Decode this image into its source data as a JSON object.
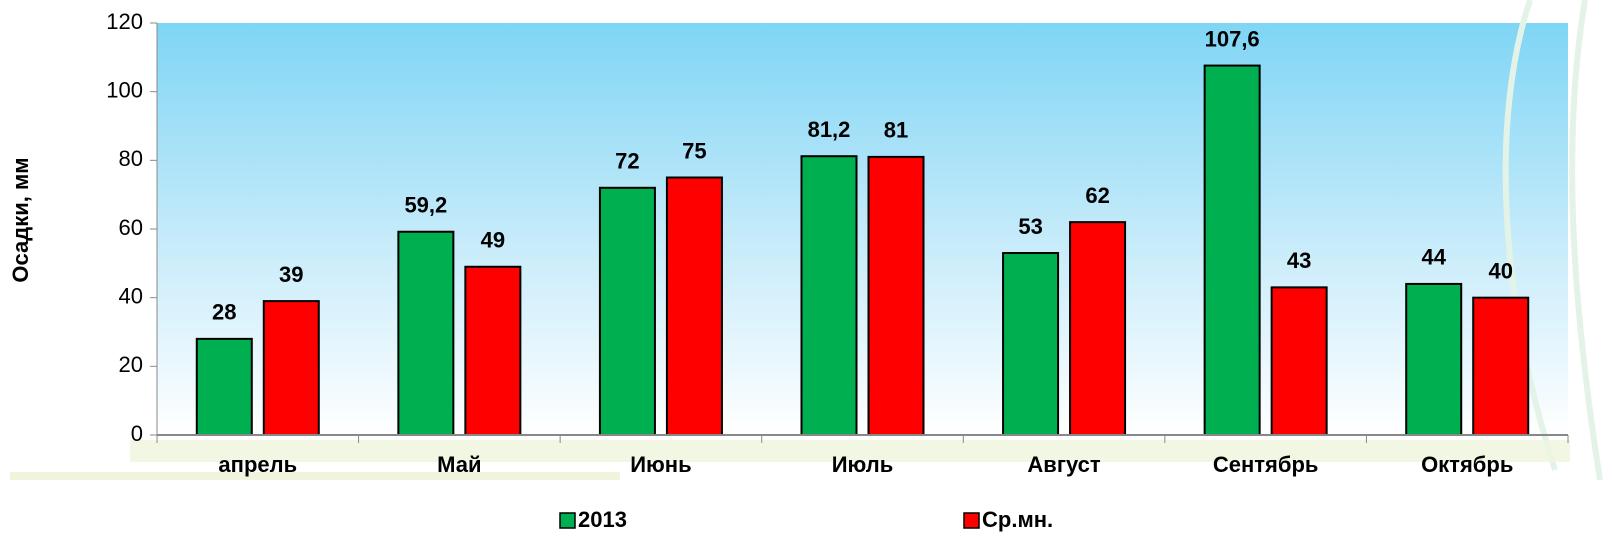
{
  "chart_data": {
    "type": "bar",
    "y_label": "Осадки, мм",
    "categories": [
      "апрель",
      "Май",
      "Июнь",
      "Июль",
      "Август",
      "Сентябрь",
      "Октябрь"
    ],
    "series": [
      {
        "name": "2013",
        "color": "#00b050",
        "values": [
          28,
          59.2,
          72,
          81.2,
          53,
          107.6,
          44
        ],
        "value_labels": [
          "28",
          "59,2",
          "72",
          "81,2",
          "53",
          "107,6",
          "44"
        ]
      },
      {
        "name": "Ср.мн.",
        "color": "#ff0000",
        "values": [
          39,
          49,
          75,
          81,
          62,
          43,
          40
        ]
      }
    ],
    "ylim": [
      0,
      120
    ],
    "yticks": [
      0,
      20,
      40,
      60,
      80,
      100,
      120
    ],
    "legend": "bottom"
  }
}
